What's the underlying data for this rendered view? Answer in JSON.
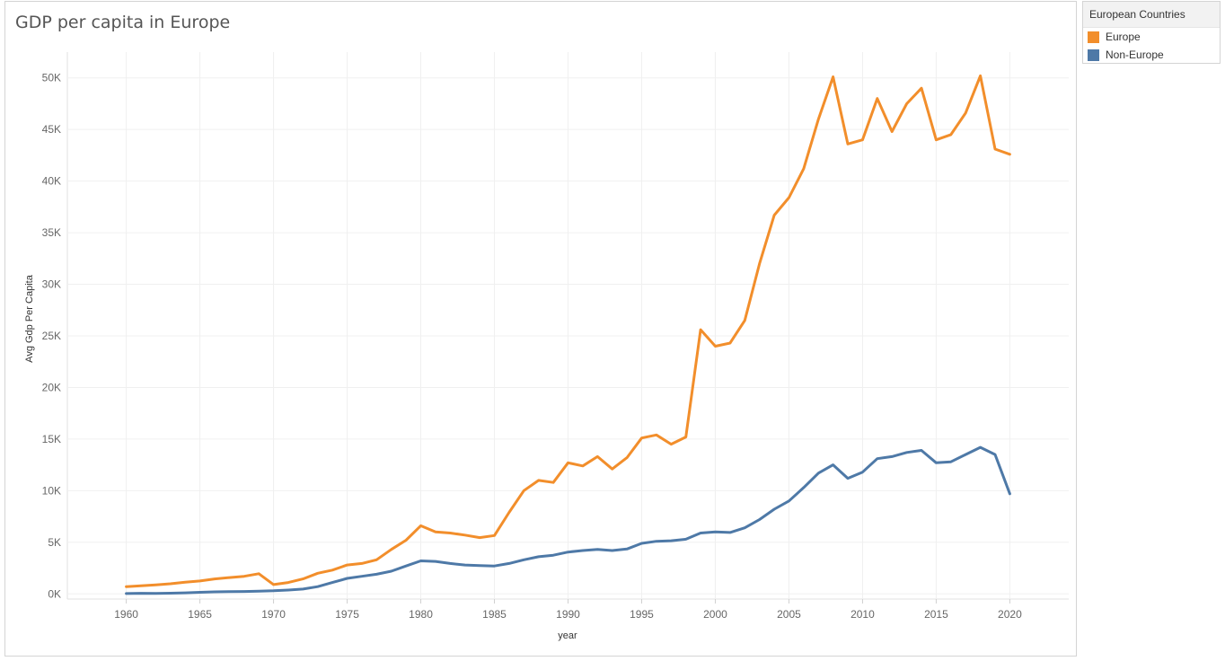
{
  "title": "GDP per capita in Europe",
  "legend": {
    "title": "European Countries",
    "items": [
      {
        "label": "Europe",
        "color": "#f28e2b"
      },
      {
        "label": "Non-Europe",
        "color": "#4e79a7"
      }
    ]
  },
  "chart_data": {
    "type": "line",
    "title": "GDP per capita in Europe",
    "xlabel": "year",
    "ylabel": "Avg Gdp Per Capita",
    "xlim": [
      1956,
      2024
    ],
    "ylim": [
      -500,
      52500
    ],
    "x_ticks": [
      1960,
      1965,
      1970,
      1975,
      1980,
      1985,
      1990,
      1995,
      2000,
      2005,
      2010,
      2015,
      2020
    ],
    "y_ticks": [
      0,
      5000,
      10000,
      15000,
      20000,
      25000,
      30000,
      35000,
      40000,
      45000,
      50000
    ],
    "y_tick_labels": [
      "0K",
      "5K",
      "10K",
      "15K",
      "20K",
      "25K",
      "30K",
      "35K",
      "40K",
      "45K",
      "50K"
    ],
    "grid": true,
    "legend_position": "right",
    "x": [
      1960,
      1961,
      1962,
      1963,
      1964,
      1965,
      1966,
      1967,
      1968,
      1969,
      1970,
      1971,
      1972,
      1973,
      1974,
      1975,
      1976,
      1977,
      1978,
      1979,
      1980,
      1981,
      1982,
      1983,
      1984,
      1985,
      1986,
      1987,
      1988,
      1989,
      1990,
      1991,
      1992,
      1993,
      1994,
      1995,
      1996,
      1997,
      1998,
      1999,
      2000,
      2001,
      2002,
      2003,
      2004,
      2005,
      2006,
      2007,
      2008,
      2009,
      2010,
      2011,
      2012,
      2013,
      2014,
      2015,
      2016,
      2017,
      2018,
      2019,
      2020
    ],
    "series": [
      {
        "name": "Europe",
        "color": "#f28e2b",
        "values": [
          700,
          780,
          870,
          980,
          1130,
          1250,
          1450,
          1580,
          1700,
          1950,
          900,
          1100,
          1450,
          2000,
          2300,
          2800,
          2950,
          3300,
          4300,
          5200,
          6600,
          6000,
          5900,
          5700,
          5450,
          5650,
          7900,
          10000,
          11000,
          10800,
          12700,
          12400,
          13300,
          12100,
          13200,
          15100,
          15400,
          14500,
          15200,
          25600,
          24000,
          24300,
          26500,
          32000,
          36700,
          38400,
          41200,
          46000,
          50100,
          43600,
          44000,
          48000,
          44800,
          47500,
          49000,
          44000,
          44500,
          46600,
          50200,
          43100,
          42600
        ]
      },
      {
        "name": "Non-Europe",
        "color": "#4e79a7",
        "values": [
          30,
          60,
          50,
          70,
          100,
          150,
          200,
          220,
          230,
          270,
          300,
          370,
          470,
          700,
          1100,
          1500,
          1700,
          1900,
          2200,
          2700,
          3200,
          3150,
          2950,
          2800,
          2750,
          2700,
          2950,
          3300,
          3600,
          3750,
          4050,
          4200,
          4300,
          4200,
          4350,
          4900,
          5100,
          5150,
          5300,
          5900,
          6000,
          5950,
          6400,
          7200,
          8200,
          9000,
          10300,
          11700,
          12500,
          11200,
          11800,
          13100,
          13300,
          13700,
          13900,
          12700,
          12800,
          13500,
          14200,
          13500,
          9700
        ]
      }
    ]
  }
}
